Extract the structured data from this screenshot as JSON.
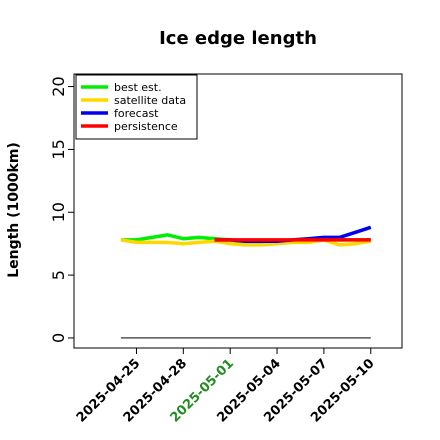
{
  "chart_data": {
    "type": "line",
    "title": "Ice edge length",
    "ylabel": "Length (1000km)",
    "xlabel": "",
    "ylim": [
      -0.8,
      21
    ],
    "yticks": [
      0,
      5,
      10,
      15,
      20
    ],
    "xlim_dates": [
      "2025-04-21",
      "2025-05-12"
    ],
    "xticks": [
      "2025-04-25",
      "2025-04-28",
      "2025-05-01",
      "2025-05-04",
      "2025-05-07",
      "2025-05-10"
    ],
    "highlighted_xtick": "2025-05-01",
    "highlight_color": "#228b22",
    "grid": false,
    "legend_position": "top-left",
    "series": [
      {
        "name": "best est.",
        "color": "#00ee00",
        "x": [
          "2025-04-24",
          "2025-04-25",
          "2025-04-26",
          "2025-04-27",
          "2025-04-28",
          "2025-04-29",
          "2025-04-30",
          "2025-05-01",
          "2025-05-02",
          "2025-05-03",
          "2025-05-04",
          "2025-05-05",
          "2025-05-06",
          "2025-05-07",
          "2025-05-08",
          "2025-05-09",
          "2025-05-10"
        ],
        "values": [
          7.8,
          7.8,
          8.0,
          8.2,
          7.9,
          8.0,
          7.9,
          7.8,
          7.6,
          7.6,
          7.6,
          7.7,
          7.7,
          7.8,
          7.8,
          7.8,
          7.8
        ]
      },
      {
        "name": "satellite data",
        "color": "#ffd700",
        "x": [
          "2025-04-24",
          "2025-04-25",
          "2025-04-26",
          "2025-04-27",
          "2025-04-28",
          "2025-04-29",
          "2025-04-30",
          "2025-05-01",
          "2025-05-02",
          "2025-05-03",
          "2025-05-04",
          "2025-05-05",
          "2025-05-06",
          "2025-05-07",
          "2025-05-08",
          "2025-05-09",
          "2025-05-10"
        ],
        "values": [
          7.8,
          7.6,
          7.6,
          7.6,
          7.5,
          7.6,
          7.7,
          7.5,
          7.4,
          7.4,
          7.5,
          7.6,
          7.6,
          7.8,
          7.4,
          7.5,
          7.7
        ]
      },
      {
        "name": "forecast",
        "color": "#0000ee",
        "x": [
          "2025-04-30",
          "2025-05-01",
          "2025-05-02",
          "2025-05-03",
          "2025-05-04",
          "2025-05-05",
          "2025-05-06",
          "2025-05-07",
          "2025-05-08",
          "2025-05-09",
          "2025-05-10"
        ],
        "values": [
          7.8,
          7.8,
          7.7,
          7.7,
          7.7,
          7.8,
          7.9,
          8.0,
          8.0,
          8.4,
          8.8
        ]
      },
      {
        "name": "persistence",
        "color": "#ff0000",
        "x": [
          "2025-04-30",
          "2025-05-10"
        ],
        "values": [
          7.8,
          7.8
        ]
      }
    ],
    "reference_line": {
      "color": "#555555",
      "x": [
        "2025-04-24",
        "2025-05-10"
      ],
      "values": [
        0,
        0
      ]
    }
  }
}
